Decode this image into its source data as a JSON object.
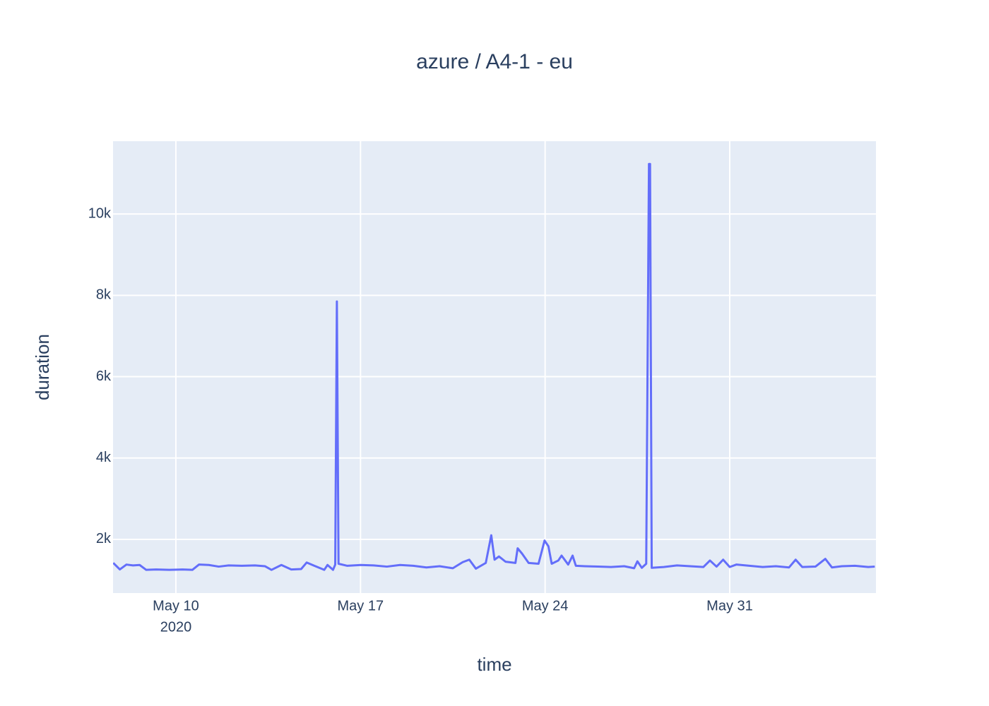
{
  "chart_data": {
    "type": "line",
    "title": "azure / A4-1 - eu",
    "xlabel": "time",
    "ylabel": "duration",
    "xlim": [
      "2020-05-07 14:48",
      "2020-06-05 13:05"
    ],
    "xticks": [
      {
        "value": "2020-05-10",
        "label": "May 10",
        "sublabel": "2020"
      },
      {
        "value": "2020-05-17",
        "label": "May 17"
      },
      {
        "value": "2020-05-24",
        "label": "May 24"
      },
      {
        "value": "2020-05-31",
        "label": "May 31"
      }
    ],
    "ylim": [
      680,
      11790
    ],
    "yticks": [
      {
        "value": 2000,
        "label": "2k"
      },
      {
        "value": 4000,
        "label": "4k"
      },
      {
        "value": 6000,
        "label": "6k"
      },
      {
        "value": 8000,
        "label": "8k"
      },
      {
        "value": 10000,
        "label": "10k"
      }
    ],
    "grid": true,
    "series": [
      {
        "name": "duration",
        "color": "#636efa",
        "x": [
          "2020-05-07 15:00",
          "2020-05-07 21:00",
          "2020-05-08 03:00",
          "2020-05-08 09:00",
          "2020-05-08 15:00",
          "2020-05-08 21:00",
          "2020-05-09 06:00",
          "2020-05-09 18:00",
          "2020-05-10 06:00",
          "2020-05-10 15:00",
          "2020-05-10 21:00",
          "2020-05-11 06:00",
          "2020-05-11 15:00",
          "2020-05-12 00:00",
          "2020-05-12 12:00",
          "2020-05-13 00:00",
          "2020-05-13 09:00",
          "2020-05-13 15:00",
          "2020-05-14 00:00",
          "2020-05-14 09:00",
          "2020-05-14 18:00",
          "2020-05-14 23:00",
          "2020-05-15 06:00",
          "2020-05-15 15:00",
          "2020-05-15 18:00",
          "2020-05-15 23:00",
          "2020-05-16 01:00",
          "2020-05-16 02:30",
          "2020-05-16 04:00",
          "2020-05-16 12:00",
          "2020-05-17 00:00",
          "2020-05-17 12:00",
          "2020-05-18 00:00",
          "2020-05-18 12:00",
          "2020-05-19 00:00",
          "2020-05-19 12:00",
          "2020-05-20 00:00",
          "2020-05-20 12:00",
          "2020-05-20 21:00",
          "2020-05-21 03:00",
          "2020-05-21 09:00",
          "2020-05-21 18:00",
          "2020-05-21 23:00",
          "2020-05-22 02:00",
          "2020-05-22 06:00",
          "2020-05-22 12:00",
          "2020-05-22 21:00",
          "2020-05-22 23:00",
          "2020-05-23 03:00",
          "2020-05-23 09:00",
          "2020-05-23 18:00",
          "2020-05-23 23:30",
          "2020-05-24 03:00",
          "2020-05-24 06:00",
          "2020-05-24 12:00",
          "2020-05-24 15:00",
          "2020-05-24 21:00",
          "2020-05-25 01:00",
          "2020-05-25 04:00",
          "2020-05-25 12:00",
          "2020-05-26 00:00",
          "2020-05-26 12:00",
          "2020-05-27 00:00",
          "2020-05-27 09:00",
          "2020-05-27 12:00",
          "2020-05-27 16:00",
          "2020-05-27 20:00",
          "2020-05-27 22:30",
          "2020-05-27 23:30",
          "2020-05-28 01:00",
          "2020-05-28 12:00",
          "2020-05-29 00:00",
          "2020-05-29 12:00",
          "2020-05-30 00:00",
          "2020-05-30 06:00",
          "2020-05-30 12:00",
          "2020-05-30 18:00",
          "2020-05-31 00:00",
          "2020-05-31 06:00",
          "2020-05-31 18:00",
          "2020-06-01 06:00",
          "2020-06-01 18:00",
          "2020-06-02 06:00",
          "2020-06-02 12:00",
          "2020-06-02 18:00",
          "2020-06-03 06:00",
          "2020-06-03 15:00",
          "2020-06-03 21:00",
          "2020-06-04 06:00",
          "2020-06-04 18:00",
          "2020-06-05 06:00",
          "2020-06-05 12:00"
        ],
        "values": [
          1420,
          1260,
          1380,
          1360,
          1370,
          1250,
          1260,
          1250,
          1260,
          1250,
          1380,
          1370,
          1330,
          1360,
          1350,
          1360,
          1340,
          1250,
          1370,
          1260,
          1270,
          1430,
          1350,
          1250,
          1370,
          1250,
          1380,
          7850,
          1400,
          1350,
          1370,
          1360,
          1330,
          1370,
          1350,
          1310,
          1340,
          1290,
          1440,
          1500,
          1280,
          1420,
          2100,
          1500,
          1580,
          1450,
          1420,
          1780,
          1650,
          1420,
          1400,
          1970,
          1830,
          1400,
          1480,
          1600,
          1380,
          1600,
          1350,
          1340,
          1330,
          1320,
          1340,
          1290,
          1460,
          1300,
          1400,
          11230,
          11230,
          1300,
          1320,
          1360,
          1340,
          1320,
          1480,
          1330,
          1500,
          1320,
          1380,
          1350,
          1320,
          1340,
          1310,
          1500,
          1320,
          1330,
          1520,
          1310,
          1340,
          1350,
          1320,
          1330
        ]
      }
    ]
  }
}
